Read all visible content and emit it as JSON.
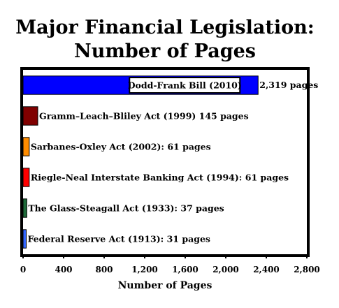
{
  "chart_data": {
    "type": "bar",
    "orientation": "horizontal",
    "title_lines": [
      "Major Financial Legislation:",
      "Number of Pages"
    ],
    "xlabel": "Number of Pages",
    "ylabel": "",
    "xlim": [
      0,
      2800
    ],
    "xticks": [
      0,
      400,
      800,
      1200,
      1600,
      2000,
      2400,
      2800
    ],
    "xtick_labels": [
      "0",
      "400",
      "800",
      "1,200",
      "1,600",
      "2,000",
      "2,400",
      "2,800"
    ],
    "grid": false,
    "legend": "none",
    "bars": [
      {
        "label": "Dodd-Frank Bill (2010)",
        "value": 2319,
        "value_label": "2,319 pages",
        "color": "#0000ff"
      },
      {
        "label": "Gramm–Leach–Bliley Act (1999) 145 pages",
        "value": 145,
        "color": "#800000"
      },
      {
        "label": "Sarbanes-Oxley Act (2002): 61 pages",
        "value": 61,
        "color": "#ff8c00"
      },
      {
        "label": "Riegle-Neal Interstate Banking Act (1994): 61 pages",
        "value": 61,
        "color": "#ff0000"
      },
      {
        "label": "The Glass-Steagall Act (1933): 37 pages",
        "value": 37,
        "color": "#1e6b3a"
      },
      {
        "label": "Federal Reserve Act (1913): 31 pages",
        "value": 31,
        "color": "#3366ff"
      }
    ]
  }
}
